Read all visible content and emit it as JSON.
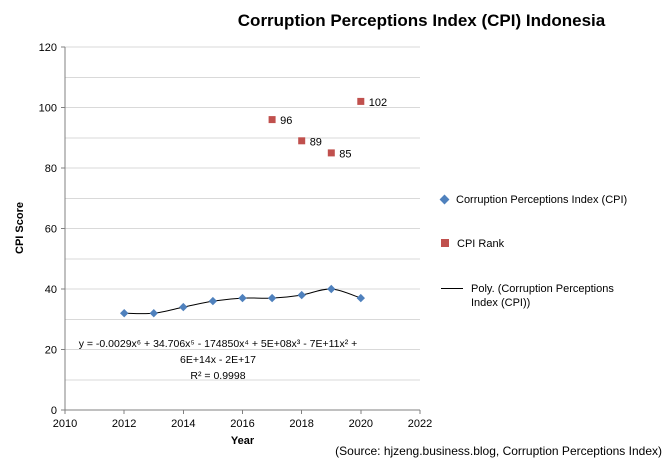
{
  "title": "Corruption Perceptions Index (CPI) Indonesia",
  "source": "(Source: hjzeng.business.blog, Corruption Perceptions Index)",
  "chart_data": {
    "type": "scatter",
    "title": "Corruption Perceptions Index (CPI) Indonesia",
    "xlabel": "Year",
    "ylabel": "CPI Score",
    "xlim": [
      2010,
      2022
    ],
    "ylim": [
      0,
      120
    ],
    "x_ticks": [
      2010,
      2012,
      2014,
      2016,
      2018,
      2020,
      2022
    ],
    "y_ticks": [
      0,
      20,
      40,
      60,
      80,
      100,
      120
    ],
    "minor_gridline_step": 10,
    "grid": true,
    "gridline_color": "#D9D9D9",
    "axis_color": "#808080",
    "legend_position": "right",
    "series": [
      {
        "name": "Corruption Perceptions Index (CPI)",
        "marker": "diamond",
        "color": "#4F81BD",
        "x": [
          2012,
          2013,
          2014,
          2015,
          2016,
          2017,
          2018,
          2019,
          2020
        ],
        "y": [
          32,
          32,
          34,
          36,
          37,
          37,
          38,
          40,
          37
        ]
      },
      {
        "name": "CPI Rank",
        "marker": "square",
        "color": "#C0504D",
        "x": [
          2017,
          2018,
          2019,
          2020
        ],
        "y": [
          96,
          89,
          85,
          102
        ],
        "data_labels": [
          "96",
          "89",
          "85",
          "102"
        ]
      }
    ],
    "trendline": {
      "name": "Poly. (Corruption Perceptions Index (CPI))",
      "type": "polynomial",
      "color": "#000000",
      "on_series": "Corruption Perceptions Index (CPI)"
    },
    "annotation": {
      "lines": [
        "y = -0.0029x⁶ + 34.706x⁵ - 174850x⁴ + 5E+08x³ - 7E+11x² +",
        "6E+14x - 2E+17",
        "R² = 0.9998"
      ]
    },
    "legend": [
      {
        "label": "Corruption Perceptions Index (CPI)",
        "marker": "diamond",
        "color": "#4F81BD"
      },
      {
        "label": "CPI Rank",
        "marker": "square",
        "color": "#C0504D"
      },
      {
        "label": "Poly. (Corruption Perceptions Index (CPI))",
        "marker": "line",
        "color": "#000000"
      }
    ]
  }
}
